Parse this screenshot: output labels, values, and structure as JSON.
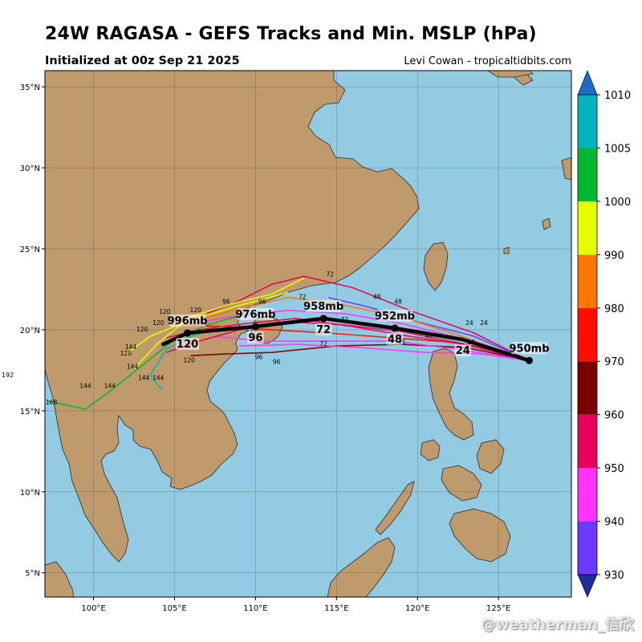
{
  "title": "24W RAGASA - GEFS Tracks and Min. MSLP (hPa)",
  "subtitle": "Initialized at 00z Sep 21 2025",
  "credit": "Levi Cowan - tropicaltidbits.com",
  "watermark": "@weatherman_信欣",
  "stray_label": "192",
  "colors": {
    "ocean": "#93cbe3",
    "land": "#be9a6c",
    "mean_track": "#000000"
  },
  "map": {
    "lon_range": [
      97,
      129.5
    ],
    "lat_range": [
      3.5,
      36
    ],
    "lon_ticks": [
      {
        "value": 100,
        "label": "100°E"
      },
      {
        "value": 105,
        "label": "105°E"
      },
      {
        "value": 110,
        "label": "110°E"
      },
      {
        "value": 115,
        "label": "115°E"
      },
      {
        "value": 120,
        "label": "120°E"
      },
      {
        "value": 125,
        "label": "125°E"
      }
    ],
    "lat_ticks": [
      {
        "value": 5,
        "label": "5°N"
      },
      {
        "value": 10,
        "label": "10°N"
      },
      {
        "value": 15,
        "label": "15°N"
      },
      {
        "value": 20,
        "label": "20°N"
      },
      {
        "value": 25,
        "label": "25°N"
      },
      {
        "value": 30,
        "label": "30°N"
      },
      {
        "value": 35,
        "label": "35°N"
      }
    ]
  },
  "colorbar": {
    "levels": [
      930,
      940,
      950,
      960,
      970,
      980,
      990,
      1000,
      1005,
      1010
    ],
    "labels": [
      "930",
      "940",
      "950",
      "960",
      "970",
      "980",
      "990",
      "1000",
      "1005",
      "1010"
    ],
    "colors": [
      "#6b39ff",
      "#ff33ff",
      "#e8005b",
      "#7a0000",
      "#ff0d00",
      "#ff7500",
      "#e4ff00",
      "#00b82d",
      "#00b5bd"
    ],
    "low_extend": "#1f2b9e",
    "high_extend": "#1e6bc5"
  },
  "mean_track": {
    "points": [
      {
        "lon": 126.9,
        "lat": 18.1,
        "label": "950mb",
        "hour": ""
      },
      {
        "lon": 122.8,
        "lat": 19.4,
        "label": "",
        "hour": "24"
      },
      {
        "lon": 118.6,
        "lat": 20.1,
        "label": "952mb",
        "hour": "48"
      },
      {
        "lon": 114.2,
        "lat": 20.7,
        "label": "958mb",
        "hour": "72"
      },
      {
        "lon": 110.0,
        "lat": 20.2,
        "label": "976mb",
        "hour": "96"
      },
      {
        "lon": 105.8,
        "lat": 19.8,
        "label": "996mb",
        "hour": "120"
      },
      {
        "lon": 104.3,
        "lat": 19.1,
        "label": "",
        "hour": ""
      }
    ]
  },
  "ensemble_tracks": [
    {
      "color": "#e8005b",
      "points": [
        [
          126.9,
          18.1
        ],
        [
          123.5,
          19.0
        ],
        [
          119.5,
          19.6
        ],
        [
          116,
          20.2
        ],
        [
          112.5,
          20.7
        ],
        [
          109.5,
          20.4
        ],
        [
          106.5,
          20.0
        ],
        [
          104.5,
          19.5
        ]
      ],
      "hours": [
        "24",
        "48",
        "72",
        "96",
        "120"
      ]
    },
    {
      "color": "#ff33ff",
      "points": [
        [
          126.9,
          18.1
        ],
        [
          123,
          19.4
        ],
        [
          119,
          20.4
        ],
        [
          115.5,
          21.0
        ],
        [
          112,
          21.2
        ],
        [
          108.5,
          20.8
        ],
        [
          106,
          20.4
        ]
      ],
      "hours": [
        "24",
        "48",
        "72",
        "96",
        "120"
      ]
    },
    {
      "color": "#7a0000",
      "points": [
        [
          126.9,
          18.1
        ],
        [
          123,
          18.9
        ],
        [
          119,
          19.1
        ],
        [
          115,
          19.0
        ],
        [
          111,
          18.6
        ],
        [
          108,
          18.5
        ],
        [
          106,
          18.4
        ]
      ],
      "hours": [
        "24",
        "48",
        "72",
        "96",
        "120"
      ]
    },
    {
      "color": "#ff33ff",
      "points": [
        [
          126.9,
          18.1
        ],
        [
          122.5,
          18.8
        ],
        [
          118.5,
          19.3
        ],
        [
          114.5,
          19.3
        ],
        [
          110.5,
          19.3
        ],
        [
          107.5,
          19.6
        ]
      ],
      "hours": [
        "24",
        "48",
        "72",
        "96",
        "120"
      ]
    },
    {
      "color": "#e8005b",
      "points": [
        [
          126.9,
          18.1
        ],
        [
          123.5,
          19.8
        ],
        [
          119.5,
          21.2
        ],
        [
          116,
          22.6
        ],
        [
          113,
          23.3
        ],
        [
          111,
          22.8
        ],
        [
          109,
          21.8
        ],
        [
          107,
          21.0
        ]
      ],
      "hours": [
        "24",
        "48",
        "72",
        "96",
        "120"
      ]
    },
    {
      "color": "#6b39ff",
      "points": [
        [
          126.9,
          18.1
        ],
        [
          123.5,
          19.6
        ],
        [
          120,
          20.5
        ],
        [
          117,
          21.4
        ],
        [
          114.5,
          22.0
        ]
      ],
      "hours": [
        "24",
        "48",
        "72"
      ]
    },
    {
      "color": "#ff0d00",
      "points": [
        [
          126.9,
          18.1
        ],
        [
          122.5,
          19.2
        ],
        [
          118.5,
          19.5
        ],
        [
          114.5,
          19.8
        ],
        [
          111,
          20.0
        ],
        [
          108,
          20.2
        ],
        [
          105,
          20.3
        ]
      ],
      "hours": [
        "24",
        "48",
        "72",
        "96",
        "120"
      ]
    },
    {
      "color": "#ff7500",
      "points": [
        [
          126.9,
          18.1
        ],
        [
          123,
          19.5
        ],
        [
          119,
          20.8
        ],
        [
          115,
          21.6
        ],
        [
          112,
          22.0
        ],
        [
          109.5,
          21.4
        ],
        [
          107,
          20.8
        ],
        [
          105,
          20.5
        ]
      ],
      "hours": [
        "24",
        "48",
        "72",
        "96",
        "120"
      ]
    },
    {
      "color": "#e4ff00",
      "points": [
        [
          112,
          22.3
        ],
        [
          109,
          21.5
        ],
        [
          106,
          20.6
        ],
        [
          103.5,
          19.6
        ],
        [
          102,
          18.5
        ]
      ],
      "hours": [
        "96",
        "120",
        "144"
      ]
    },
    {
      "color": "#00b82d",
      "points": [
        [
          109.5,
          21.0
        ],
        [
          107,
          20.3
        ],
        [
          105,
          19.4
        ],
        [
          103,
          17.8
        ],
        [
          101,
          16.2
        ],
        [
          99.5,
          15.1
        ],
        [
          97.2,
          15.6
        ]
      ],
      "hours": [
        "120",
        "144",
        "168"
      ]
    },
    {
      "color": "#00b5bd",
      "points": [
        [
          108,
          20.2
        ],
        [
          106,
          19.6
        ],
        [
          104.5,
          18.8
        ],
        [
          103.5,
          17.2
        ],
        [
          104.2,
          16.3
        ]
      ],
      "hours": [
        "120",
        "144"
      ]
    },
    {
      "color": "#e4ff00",
      "points": [
        [
          113,
          23.2
        ],
        [
          111,
          22.2
        ],
        [
          108.5,
          21.6
        ],
        [
          106,
          20.8
        ],
        [
          104,
          19.2
        ],
        [
          102.5,
          17.6
        ]
      ],
      "hours": [
        "96",
        "120",
        "144"
      ]
    },
    {
      "color": "#ff33ff",
      "points": [
        [
          126.9,
          18.1
        ],
        [
          124,
          18.5
        ],
        [
          120.5,
          18.6
        ],
        [
          116.5,
          18.9
        ],
        [
          112.5,
          19.1
        ],
        [
          109,
          19.0
        ]
      ],
      "hours": [
        "24",
        "48",
        "72",
        "96"
      ]
    },
    {
      "color": "#e8005b",
      "points": [
        [
          126.9,
          18.1
        ],
        [
          123,
          19.1
        ],
        [
          119,
          19.9
        ],
        [
          115.5,
          20.3
        ],
        [
          112,
          20.5
        ],
        [
          109,
          20.0
        ],
        [
          106.5,
          19.3
        ],
        [
          104.5,
          18.6
        ]
      ],
      "hours": [
        "24",
        "48",
        "72",
        "96",
        "120"
      ]
    }
  ],
  "hour_labels": [
    {
      "lon": 112.9,
      "lat": 21.9,
      "text": "72"
    },
    {
      "lon": 114.6,
      "lat": 23.3,
      "text": "72"
    },
    {
      "lon": 118.8,
      "lat": 21.6,
      "text": "48"
    },
    {
      "lon": 117.5,
      "lat": 21.9,
      "text": "48"
    },
    {
      "lon": 123.2,
      "lat": 20.3,
      "text": "24"
    },
    {
      "lon": 124.1,
      "lat": 20.3,
      "text": "24"
    },
    {
      "lon": 123.3,
      "lat": 19.1,
      "text": "24"
    },
    {
      "lon": 114.2,
      "lat": 19.0,
      "text": "72"
    },
    {
      "lon": 110.2,
      "lat": 18.2,
      "text": "96"
    },
    {
      "lon": 111.3,
      "lat": 17.9,
      "text": "96"
    },
    {
      "lon": 108.2,
      "lat": 21.6,
      "text": "96"
    },
    {
      "lon": 110.4,
      "lat": 21.6,
      "text": "96"
    },
    {
      "lon": 106.3,
      "lat": 21.1,
      "text": "120"
    },
    {
      "lon": 104.4,
      "lat": 21.0,
      "text": "120"
    },
    {
      "lon": 103.0,
      "lat": 19.9,
      "text": "120"
    },
    {
      "lon": 104.0,
      "lat": 20.3,
      "text": "120"
    },
    {
      "lon": 102.0,
      "lat": 18.4,
      "text": "120"
    },
    {
      "lon": 105.9,
      "lat": 18.0,
      "text": "120"
    },
    {
      "lon": 102.3,
      "lat": 18.8,
      "text": "144"
    },
    {
      "lon": 102.4,
      "lat": 17.6,
      "text": "144"
    },
    {
      "lon": 103.1,
      "lat": 16.9,
      "text": "144"
    },
    {
      "lon": 104.0,
      "lat": 16.9,
      "text": "144"
    },
    {
      "lon": 101.0,
      "lat": 16.4,
      "text": "144"
    },
    {
      "lon": 99.5,
      "lat": 16.4,
      "text": "144"
    },
    {
      "lon": 97.4,
      "lat": 15.4,
      "text": "168"
    },
    {
      "lon": 119.0,
      "lat": 19.1,
      "text": "48"
    },
    {
      "lon": 120.7,
      "lat": 19.5,
      "text": "48"
    },
    {
      "lon": 115.5,
      "lat": 20.5,
      "text": "72"
    }
  ]
}
